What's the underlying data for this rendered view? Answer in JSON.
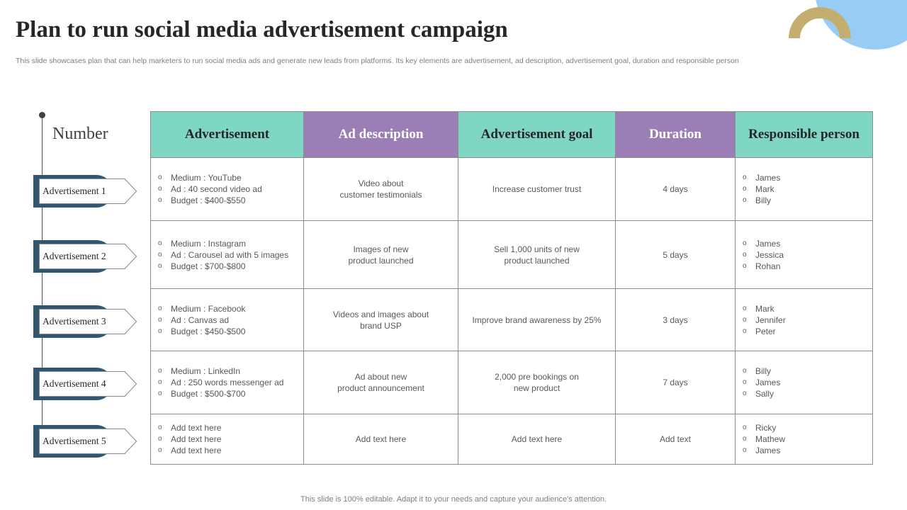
{
  "title": "Plan to run social media advertisement campaign",
  "subtitle": "This slide showcases plan that can help marketers to run social media ads and generate new leads from platforms. Its key elements are advertisement, ad description, advertisement goal, duration and responsible person",
  "number_header": "Number",
  "columns": [
    "Advertisement",
    "Ad description",
    "Advertisement  goal",
    "Duration",
    "Responsible person"
  ],
  "colors": {
    "teal": "#7fd6c2",
    "purple": "#9b7eb6",
    "tag_dark": "#33566f",
    "accent_blue": "#99ccf5",
    "accent_gold": "#c4ae6f"
  },
  "rows": [
    {
      "label": "Advertisement 1",
      "advertisement": [
        "Medium : YouTube",
        "Ad : 40 second video ad",
        "Budget : $400-$550"
      ],
      "description": [
        "Video about",
        "customer testimonials"
      ],
      "goal": [
        "Increase customer trust"
      ],
      "duration": "4 days",
      "people": [
        "James",
        "Mark",
        "Billy"
      ]
    },
    {
      "label": "Advertisement 2",
      "advertisement": [
        "Medium : Instagram",
        "Ad : Carousel ad with 5 images",
        "Budget : $700-$800"
      ],
      "description": [
        "Images of new",
        "product launched"
      ],
      "goal": [
        "Sell 1,000 units of new",
        "product launched"
      ],
      "duration": "5 days",
      "people": [
        "James",
        "Jessica",
        "Rohan"
      ]
    },
    {
      "label": "Advertisement 3",
      "advertisement": [
        "Medium : Facebook",
        "Ad : Canvas  ad",
        "Budget : $450-$500"
      ],
      "description": [
        "Videos and images about",
        "brand USP"
      ],
      "goal": [
        "Improve  brand awareness  by 25%"
      ],
      "duration": "3 days",
      "people": [
        "Mark",
        "Jennifer",
        "Peter"
      ]
    },
    {
      "label": "Advertisement 4",
      "advertisement": [
        "Medium : LinkedIn",
        "Ad : 250 words messenger ad",
        "Budget : $500-$700"
      ],
      "description": [
        "Ad about new",
        "product announcement"
      ],
      "goal": [
        "2,000 pre bookings on",
        "new product"
      ],
      "duration": "7 days",
      "people": [
        "Billy",
        "James",
        "Sally"
      ]
    },
    {
      "label": "Advertisement 5",
      "advertisement": [
        "Add text here",
        "Add text here",
        "Add text here"
      ],
      "description": [
        "Add text here"
      ],
      "goal": [
        "Add text here"
      ],
      "duration": "Add text",
      "people": [
        "Ricky",
        "Mathew",
        "James"
      ]
    }
  ],
  "footer": "This slide is 100% editable. Adapt it to your needs and capture your audience's attention."
}
